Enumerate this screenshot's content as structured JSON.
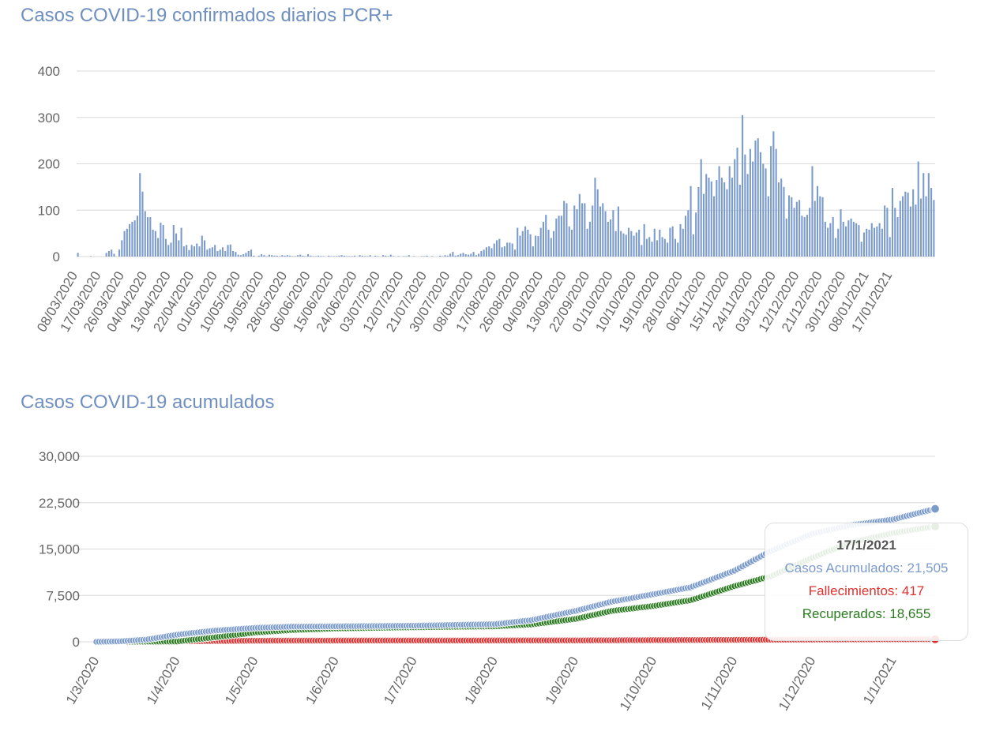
{
  "chart_data": [
    {
      "type": "bar",
      "title": "Casos COVID-19 confirmados diarios PCR+",
      "start_date": "2020-03-08",
      "end_date": "2021-01-17",
      "ylim": [
        0,
        400
      ],
      "y_ticks": [
        "0",
        "100",
        "200",
        "300",
        "400"
      ],
      "x_tick_labels": [
        "08/03/2020",
        "17/03/2020",
        "26/03/2020",
        "04/04/2020",
        "13/04/2020",
        "22/04/2020",
        "01/05/2020",
        "10/05/2020",
        "19/05/2020",
        "28/05/2020",
        "06/06/2020",
        "15/06/2020",
        "24/06/2020",
        "03/07/2020",
        "12/07/2020",
        "21/07/2020",
        "30/07/2020",
        "08/08/2020",
        "17/08/2020",
        "26/08/2020",
        "04/09/2020",
        "13/09/2020",
        "22/09/2020",
        "01/10/2020",
        "10/10/2020",
        "19/10/2020",
        "28/10/2020",
        "06/11/2020",
        "15/11/2020",
        "24/11/2020",
        "03/12/2020",
        "12/12/2020",
        "21/12/2020",
        "30/12/2020",
        "08/01/2021",
        "17/01/2021"
      ],
      "grid": true,
      "color": "#7b9bcc",
      "values": [
        8,
        0,
        0,
        0,
        0,
        1,
        0,
        0,
        0,
        0,
        0,
        8,
        12,
        15,
        6,
        0,
        15,
        35,
        55,
        60,
        70,
        75,
        78,
        88,
        180,
        140,
        98,
        85,
        85,
        58,
        55,
        40,
        73,
        68,
        38,
        25,
        30,
        68,
        50,
        35,
        62,
        22,
        25,
        14,
        25,
        22,
        28,
        22,
        45,
        35,
        15,
        18,
        20,
        25,
        12,
        15,
        20,
        12,
        25,
        26,
        12,
        10,
        4,
        3,
        5,
        8,
        12,
        15,
        2,
        0,
        2,
        5,
        3,
        1,
        4,
        3,
        2,
        2,
        1,
        3,
        2,
        3,
        2,
        1,
        1,
        3,
        4,
        2,
        1,
        5,
        2,
        1,
        1,
        2,
        1,
        1,
        0,
        2,
        1,
        1,
        1,
        2,
        3,
        2,
        1,
        1,
        1,
        2,
        0,
        3,
        2,
        1,
        1,
        3,
        0,
        2,
        1,
        0,
        3,
        2,
        1,
        4,
        1,
        0,
        1,
        0,
        1,
        1,
        3,
        0,
        1,
        0,
        0,
        1,
        1,
        2,
        0,
        1,
        0,
        0,
        2,
        1,
        3,
        2,
        6,
        10,
        2,
        3,
        6,
        8,
        5,
        4,
        6,
        10,
        3,
        6,
        12,
        15,
        20,
        22,
        18,
        28,
        35,
        38,
        20,
        22,
        30,
        30,
        28,
        15,
        62,
        45,
        55,
        65,
        58,
        48,
        22,
        45,
        44,
        62,
        75,
        90,
        58,
        40,
        55,
        82,
        88,
        88,
        120,
        115,
        65,
        58,
        110,
        102,
        135,
        115,
        115,
        60,
        75,
        110,
        170,
        145,
        108,
        115,
        98,
        75,
        80,
        100,
        55,
        108,
        55,
        50,
        47,
        62,
        55,
        45,
        52,
        58,
        25,
        70,
        38,
        42,
        32,
        60,
        35,
        58,
        42,
        38,
        30,
        62,
        65,
        38,
        30,
        70,
        60,
        88,
        100,
        152,
        48,
        95,
        150,
        210,
        135,
        178,
        170,
        162,
        130,
        165,
        195,
        170,
        160,
        145,
        195,
        170,
        210,
        235,
        155,
        305,
        220,
        178,
        232,
        205,
        250,
        255,
        225,
        200,
        190,
        130,
        238,
        270,
        232,
        160,
        168,
        150,
        82,
        132,
        128,
        105,
        118,
        122,
        88,
        85,
        90,
        105,
        195,
        120,
        152,
        130,
        128,
        75,
        62,
        72,
        85,
        40,
        60,
        102,
        75,
        65,
        78,
        82,
        75,
        72,
        68,
        32,
        52,
        60,
        58,
        72,
        62,
        65,
        72,
        60,
        110,
        105,
        42,
        148,
        105,
        85,
        120,
        130,
        140,
        138,
        108,
        145,
        112,
        205,
        125,
        180,
        130,
        180,
        148,
        122
      ]
    },
    {
      "type": "line",
      "title": "Casos COVID-19 acumulados",
      "start_date": "2020-03-01",
      "end_date": "2021-01-17",
      "ylim": [
        0,
        30000
      ],
      "y_ticks": [
        "0",
        "7,500",
        "15,000",
        "22,500",
        "30,000"
      ],
      "x_tick_labels": [
        "1/3/2020",
        "1/4/2020",
        "1/5/2020",
        "1/6/2020",
        "1/7/2020",
        "1/8/2020",
        "1/9/2020",
        "1/10/2020",
        "1/11/2020",
        "1/12/2020",
        "1/1/2021"
      ],
      "grid": true,
      "series": [
        {
          "name": "Casos Acumulados",
          "color": "#7b9bcc",
          "x": [
            "2020-03-01",
            "2020-03-10",
            "2020-03-20",
            "2020-04-01",
            "2020-04-15",
            "2020-05-01",
            "2020-05-15",
            "2020-06-01",
            "2020-07-01",
            "2020-08-01",
            "2020-08-15",
            "2020-09-01",
            "2020-09-15",
            "2020-10-01",
            "2020-10-15",
            "2020-11-01",
            "2020-11-15",
            "2020-12-01",
            "2020-12-15",
            "2021-01-01",
            "2021-01-17"
          ],
          "y": [
            0,
            80,
            350,
            1150,
            1800,
            2250,
            2450,
            2500,
            2600,
            2850,
            3500,
            5000,
            6500,
            7700,
            8800,
            11500,
            14700,
            17500,
            18800,
            19800,
            21505
          ]
        },
        {
          "name": "Fallecimientos",
          "color": "#e03030",
          "x": [
            "2020-03-01",
            "2020-03-25",
            "2020-04-15",
            "2020-05-01",
            "2020-06-01",
            "2020-09-01",
            "2020-11-01",
            "2020-12-15",
            "2021-01-17"
          ],
          "y": [
            0,
            40,
            120,
            180,
            200,
            225,
            310,
            380,
            417
          ]
        },
        {
          "name": "Recuperados",
          "color": "#2a7a1f",
          "x": [
            "2020-03-01",
            "2020-04-01",
            "2020-04-15",
            "2020-05-01",
            "2020-05-15",
            "2020-06-01",
            "2020-07-01",
            "2020-08-01",
            "2020-08-15",
            "2020-09-01",
            "2020-09-15",
            "2020-10-01",
            "2020-10-15",
            "2020-11-01",
            "2020-11-15",
            "2020-12-01",
            "2020-12-15",
            "2021-01-01",
            "2021-01-17"
          ],
          "y": [
            0,
            50,
            700,
            1500,
            1900,
            2150,
            2350,
            2500,
            2800,
            3700,
            5000,
            5800,
            6700,
            9000,
            10600,
            13600,
            16000,
            17600,
            18655
          ]
        }
      ],
      "tooltip": {
        "date": "17/1/2021",
        "lines": [
          "Casos Acumulados: 21,505",
          "Fallecimientos: 417",
          "Recuperados: 18,655"
        ]
      }
    }
  ]
}
